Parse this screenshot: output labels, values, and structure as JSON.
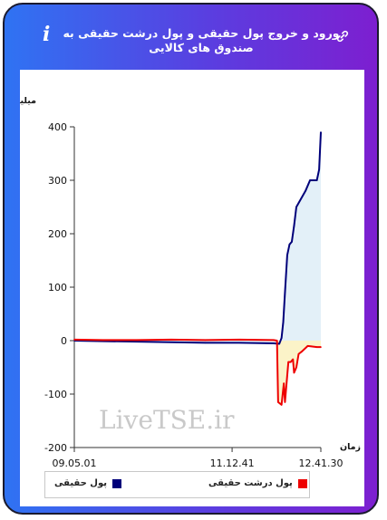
{
  "header": {
    "title": "ورود و خروج پول حقیقی و پول درشت حقیقی به صندوق های کالایی",
    "info_glyph": "i",
    "info_icon": "info-icon",
    "link_icon": "link-icon"
  },
  "watermark": "LiveTSE.ir",
  "chart_data": {
    "type": "line",
    "ylabel": "میلیارد تومان",
    "xlabel": "زمان",
    "ylim": [
      -200,
      400
    ],
    "yticks": [
      "400",
      "300",
      "200",
      "100",
      "0",
      "-100",
      "-200"
    ],
    "xticks": [
      "09.05.01",
      "11.12.41",
      "12.41.30"
    ],
    "x_range": [
      "09:05:01",
      "12:41:30"
    ],
    "series": [
      {
        "name": "پول حقیقی",
        "color": "#00007a",
        "fill": "#e3f0f8",
        "points": [
          [
            "09:05:01",
            0
          ],
          [
            "09:30:00",
            -1
          ],
          [
            "10:00:00",
            -2
          ],
          [
            "10:30:00",
            -3
          ],
          [
            "11:00:00",
            -4
          ],
          [
            "11:30:00",
            -4
          ],
          [
            "12:00:00",
            -5
          ],
          [
            "12:05:00",
            -6
          ],
          [
            "12:07:00",
            5
          ],
          [
            "12:08:30",
            35
          ],
          [
            "12:10:00",
            90
          ],
          [
            "12:12:00",
            160
          ],
          [
            "12:14:00",
            180
          ],
          [
            "12:16:00",
            185
          ],
          [
            "12:18:00",
            215
          ],
          [
            "12:20:00",
            250
          ],
          [
            "12:24:00",
            265
          ],
          [
            "12:28:00",
            280
          ],
          [
            "12:32:00",
            300
          ],
          [
            "12:38:00",
            300
          ],
          [
            "12:40:00",
            320
          ],
          [
            "12:41:30",
            390
          ]
        ]
      },
      {
        "name": "پول درشت حقیقی",
        "color": "#ee0000",
        "fill": "#fbf3c8",
        "points": [
          [
            "09:05:01",
            2
          ],
          [
            "09:30:00",
            1
          ],
          [
            "10:00:00",
            1
          ],
          [
            "10:30:00",
            2
          ],
          [
            "11:00:00",
            1
          ],
          [
            "11:30:00",
            2
          ],
          [
            "12:00:00",
            1
          ],
          [
            "12:03:00",
            0
          ],
          [
            "12:04:00",
            -115
          ],
          [
            "12:07:00",
            -120
          ],
          [
            "12:09:00",
            -80
          ],
          [
            "12:10:00",
            -115
          ],
          [
            "12:13:00",
            -40
          ],
          [
            "12:15:00",
            -40
          ],
          [
            "12:17:00",
            -35
          ],
          [
            "12:18:00",
            -60
          ],
          [
            "12:20:00",
            -50
          ],
          [
            "12:22:00",
            -25
          ],
          [
            "12:25:00",
            -20
          ],
          [
            "12:30:00",
            -10
          ],
          [
            "12:38:00",
            -12
          ],
          [
            "12:41:30",
            -12
          ]
        ]
      }
    ],
    "legend": [
      "پول حقیقی",
      "پول درشت حقیقی"
    ],
    "legend_position": "bottom",
    "grid": false
  }
}
